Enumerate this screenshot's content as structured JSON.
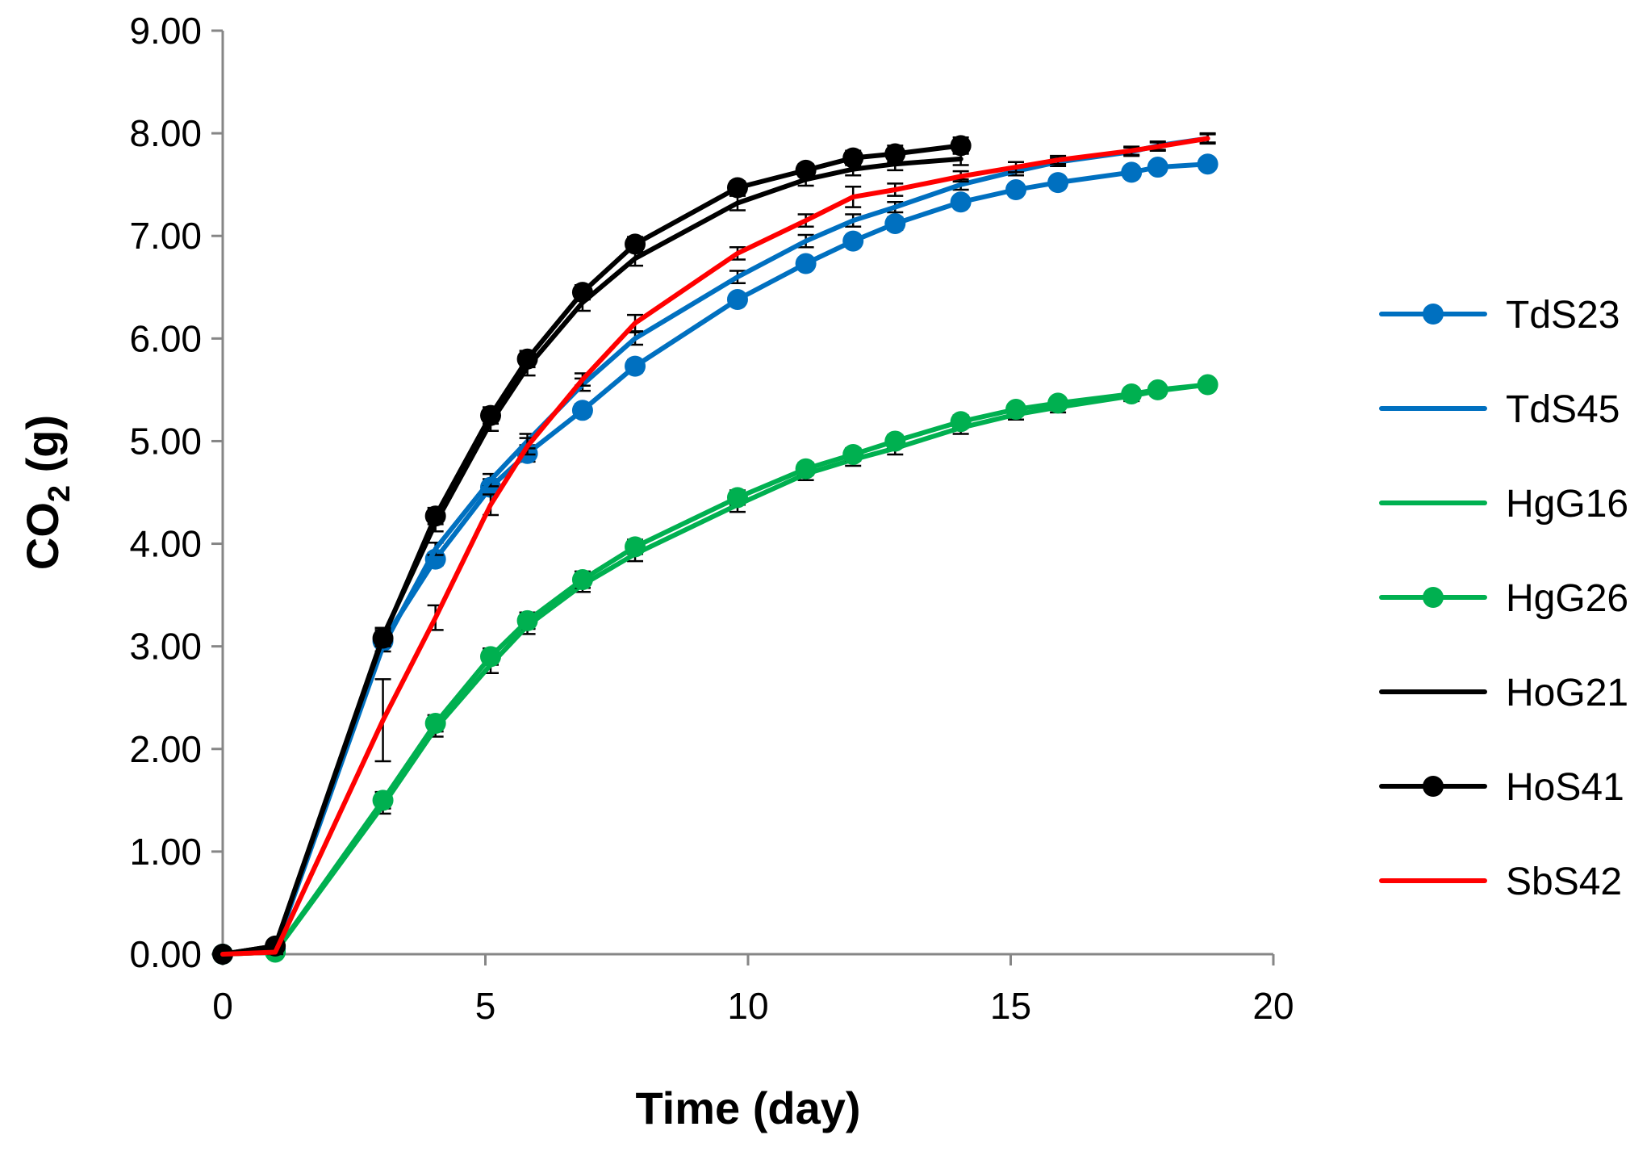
{
  "chart_data": {
    "type": "line",
    "title": "",
    "xlabel": "Time (day)",
    "ylabel_main": "CO",
    "ylabel_sub": "2",
    "ylabel_suffix": " (g)",
    "xlim": [
      0,
      20
    ],
    "ylim": [
      0,
      9
    ],
    "xticks": [
      0,
      5,
      10,
      15,
      20
    ],
    "xtick_labels": [
      "0",
      "5",
      "10",
      "15",
      "20"
    ],
    "yticks": [
      0,
      1,
      2,
      3,
      4,
      5,
      6,
      7,
      8,
      9
    ],
    "ytick_labels": [
      "0.00",
      "1.00",
      "2.00",
      "3.00",
      "4.00",
      "5.00",
      "6.00",
      "7.00",
      "8.00",
      "9.00"
    ],
    "grid": false,
    "legend_position": "right",
    "series": [
      {
        "name": "TdS23",
        "color": "#0070C0",
        "markers": true,
        "x": [
          0,
          1,
          3.05,
          4.05,
          5.1,
          5.8,
          6.85,
          7.85,
          9.8,
          11.1,
          12,
          12.8,
          14.05,
          15.1,
          15.9,
          17.3,
          17.8,
          18.75
        ],
        "y": [
          0,
          0.05,
          3.05,
          3.85,
          4.55,
          4.88,
          5.3,
          5.73,
          6.38,
          6.73,
          6.95,
          7.12,
          7.33,
          7.45,
          7.52,
          7.62,
          7.67,
          7.7
        ],
        "err": [
          0,
          0.03,
          0.05,
          0.06,
          0.08,
          0.08,
          0.06,
          0.06,
          0.05,
          0.05,
          0.05,
          0.06,
          0.05,
          0.04,
          0.03,
          0.03,
          0.03,
          0.03
        ]
      },
      {
        "name": "TdS45",
        "color": "#0070C0",
        "markers": false,
        "x": [
          0,
          1,
          3.05,
          4.05,
          5.1,
          5.8,
          6.85,
          7.85,
          9.8,
          11.1,
          12,
          12.8,
          14.05,
          15.1,
          15.9,
          17.3,
          17.8,
          18.75
        ],
        "y": [
          0,
          0.05,
          3.0,
          3.95,
          4.62,
          5.0,
          5.55,
          6.0,
          6.6,
          6.95,
          7.15,
          7.28,
          7.5,
          7.63,
          7.72,
          7.82,
          7.88,
          7.95
        ],
        "err": [
          0,
          0.03,
          0.05,
          0.06,
          0.06,
          0.07,
          0.06,
          0.06,
          0.06,
          0.06,
          0.06,
          0.05,
          0.05,
          0.04,
          0.04,
          0.04,
          0.04,
          0.04
        ]
      },
      {
        "name": "HgG16",
        "color": "#00B050",
        "markers": false,
        "x": [
          0,
          1,
          3.05,
          4.05,
          5.1,
          5.8,
          6.85,
          7.85,
          9.8,
          11.1,
          12,
          12.8,
          14.05,
          15.1,
          15.9,
          17.3,
          17.8,
          18.75
        ],
        "y": [
          0,
          0.02,
          1.45,
          2.2,
          2.82,
          3.2,
          3.6,
          3.9,
          4.38,
          4.68,
          4.82,
          4.93,
          5.13,
          5.26,
          5.33,
          5.44,
          5.49,
          5.55
        ],
        "err": [
          0,
          0.02,
          0.08,
          0.08,
          0.08,
          0.08,
          0.07,
          0.07,
          0.07,
          0.06,
          0.06,
          0.06,
          0.06,
          0.05,
          0.05,
          0.05,
          0.05,
          0.05
        ]
      },
      {
        "name": "HgG26",
        "color": "#00B050",
        "markers": true,
        "x": [
          0,
          1,
          3.05,
          4.05,
          5.1,
          5.8,
          6.85,
          7.85,
          9.8,
          11.1,
          12,
          12.8,
          14.05,
          15.1,
          15.9,
          17.3,
          17.8,
          18.75
        ],
        "y": [
          0,
          0.02,
          1.5,
          2.25,
          2.9,
          3.25,
          3.65,
          3.97,
          4.45,
          4.73,
          4.87,
          5.0,
          5.19,
          5.31,
          5.37,
          5.46,
          5.5,
          5.55
        ],
        "err": [
          0,
          0.02,
          0.08,
          0.08,
          0.08,
          0.08,
          0.08,
          0.07,
          0.07,
          0.06,
          0.06,
          0.06,
          0.06,
          0.05,
          0.05,
          0.05,
          0.05,
          0.05
        ]
      },
      {
        "name": "HoG21",
        "color": "#000000",
        "markers": false,
        "x": [
          0,
          1,
          3.05,
          4.05,
          5.1,
          5.8,
          6.85,
          7.85,
          9.8,
          11.1,
          12,
          12.8,
          14.05
        ],
        "y": [
          0,
          0.08,
          3.1,
          4.2,
          5.18,
          5.72,
          6.35,
          6.78,
          7.32,
          7.55,
          7.65,
          7.7,
          7.75
        ],
        "err": [
          0,
          0.03,
          0.08,
          0.08,
          0.08,
          0.08,
          0.08,
          0.07,
          0.07,
          0.06,
          0.06,
          0.06,
          0.06
        ]
      },
      {
        "name": "HoS41",
        "color": "#000000",
        "markers": true,
        "x": [
          0,
          1,
          3.05,
          4.05,
          5.1,
          5.8,
          6.85,
          7.85,
          9.8,
          11.1,
          12,
          12.8,
          14.05
        ],
        "y": [
          0,
          0.08,
          3.08,
          4.27,
          5.25,
          5.8,
          6.45,
          6.92,
          7.47,
          7.64,
          7.76,
          7.8,
          7.88
        ],
        "err": [
          0,
          0.03,
          0.08,
          0.08,
          0.08,
          0.08,
          0.07,
          0.07,
          0.06,
          0.06,
          0.07,
          0.08,
          0.08
        ]
      },
      {
        "name": "SbS42",
        "color": "#FF0000",
        "markers": false,
        "x": [
          0,
          1,
          3.05,
          4.05,
          5.1,
          5.8,
          6.85,
          7.85,
          9.8,
          11.1,
          12,
          12.8,
          14.05,
          15.1,
          15.9,
          17.3,
          17.8,
          18.75
        ],
        "y": [
          0,
          0.02,
          2.28,
          3.28,
          4.38,
          4.95,
          5.6,
          6.15,
          6.83,
          7.15,
          7.38,
          7.45,
          7.58,
          7.67,
          7.74,
          7.83,
          7.87,
          7.95
        ],
        "err": [
          0,
          0.02,
          0.4,
          0.12,
          0.1,
          0.08,
          0.06,
          0.08,
          0.06,
          0.06,
          0.1,
          0.06,
          0.05,
          0.05,
          0.04,
          0.04,
          0.04,
          0.05
        ]
      }
    ]
  }
}
